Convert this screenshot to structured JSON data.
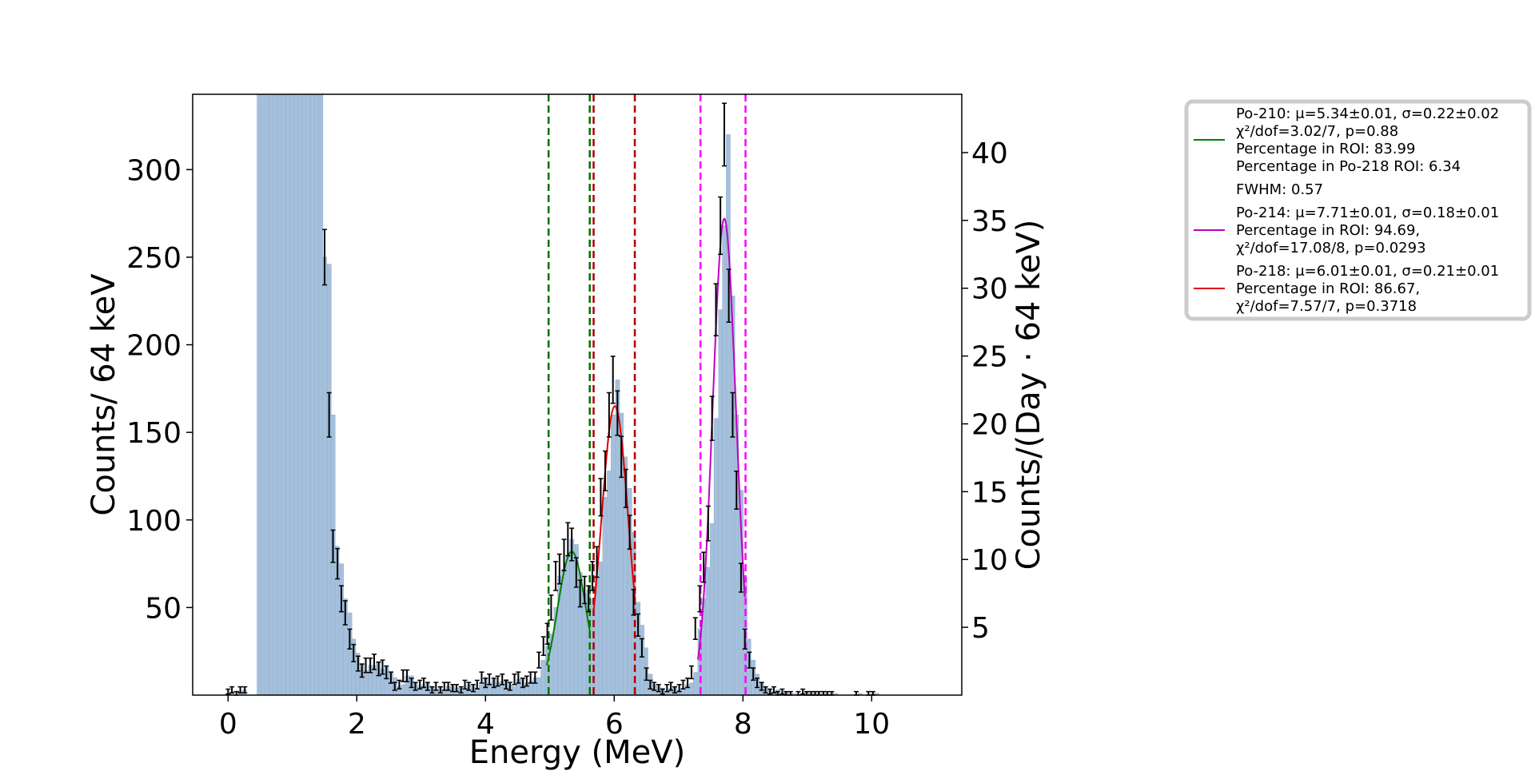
{
  "chart_data": {
    "type": "bar",
    "xlabel": "Energy (MeV)",
    "ylabel": "Counts/ 64 keV",
    "ylabel_right": "Counts/(Day · 64 keV)",
    "xlim": [
      -0.55,
      11.4
    ],
    "ylim": [
      0,
      343
    ],
    "ylim_right": [
      0,
      44.3
    ],
    "xticks": [
      0,
      2,
      4,
      6,
      8,
      10
    ],
    "xtick_labels": [
      "0",
      "2",
      "4",
      "6",
      "8",
      "10"
    ],
    "yticks": [
      50,
      100,
      150,
      200,
      250,
      300
    ],
    "ytick_labels": [
      "50",
      "100",
      "150",
      "200",
      "250",
      "300"
    ],
    "yticks_right": [
      5,
      10,
      15,
      20,
      25,
      30,
      35,
      40
    ],
    "ytick_right_labels": [
      "5",
      "10",
      "15",
      "20",
      "25",
      "30",
      "35",
      "40"
    ],
    "bin_width": 0.064,
    "histogram": {
      "color": "#a4c0dc",
      "x_start": 0,
      "values": [
        0,
        1,
        2,
        0,
        1,
        2,
        2,
        1,
        0,
        0,
        0,
        0,
        0,
        0,
        0,
        0,
        0,
        0,
        0,
        0,
        0,
        0,
        0,
        0,
        0,
        0,
        0,
        0,
        0,
        0,
        0,
        0,
        0,
        0,
        0,
        0,
        0,
        0,
        0,
        0,
        0,
        0,
        0,
        0,
        0,
        0,
        0,
        0,
        0,
        0,
        0,
        0,
        0,
        0,
        0,
        0,
        0,
        0,
        0,
        0,
        0,
        0,
        0,
        0,
        0,
        0,
        0,
        0,
        0,
        0,
        0,
        0,
        0,
        0,
        0,
        0,
        0,
        0,
        0,
        0,
        0,
        0,
        0,
        0,
        0,
        0,
        0,
        0,
        0,
        0,
        0,
        0,
        0,
        0,
        0,
        0,
        0,
        0,
        0,
        0,
        0,
        0,
        0,
        0,
        0,
        0,
        0,
        0,
        0,
        0,
        0,
        0,
        0,
        0,
        0,
        0,
        0,
        0,
        0,
        0,
        0,
        0,
        0,
        0,
        0,
        0,
        0,
        0,
        0,
        0,
        0,
        0,
        0,
        0,
        0,
        0,
        0,
        0,
        0,
        0,
        0,
        0,
        0,
        0,
        0,
        0,
        0,
        0,
        0,
        0,
        0,
        0,
        0,
        0,
        0,
        0,
        0,
        0,
        0,
        0,
        0,
        0,
        0,
        0,
        0,
        0,
        0,
        0,
        0,
        0,
        0,
        0,
        0,
        0,
        0,
        0,
        0,
        0,
        0,
        0,
        0,
        0,
        0,
        0,
        0,
        0,
        0,
        0,
        0,
        0
      ],
      "bins": [
        [
          -0.03,
          1
        ],
        [
          0.03,
          2
        ],
        [
          0.1,
          0
        ],
        [
          0.16,
          2
        ],
        [
          0.22,
          3
        ],
        [
          0.45,
          343
        ],
        [
          0.51,
          343
        ],
        [
          0.58,
          343
        ],
        [
          0.64,
          343
        ],
        [
          0.7,
          343
        ],
        [
          0.77,
          343
        ],
        [
          0.83,
          343
        ],
        [
          0.9,
          343
        ],
        [
          0.96,
          343
        ],
        [
          1.02,
          343
        ],
        [
          1.09,
          343
        ],
        [
          1.15,
          343
        ],
        [
          1.22,
          343
        ],
        [
          1.28,
          343
        ],
        [
          1.34,
          343
        ],
        [
          1.41,
          343
        ],
        [
          1.47,
          250
        ],
        [
          1.54,
          246
        ],
        [
          1.6,
          160
        ],
        [
          1.66,
          85
        ],
        [
          1.73,
          75
        ],
        [
          1.79,
          55
        ],
        [
          1.86,
          47
        ],
        [
          1.92,
          32
        ],
        [
          1.98,
          24
        ],
        [
          2.05,
          18
        ],
        [
          2.11,
          14
        ],
        [
          2.18,
          17
        ],
        [
          2.24,
          17
        ],
        [
          2.3,
          19
        ],
        [
          2.37,
          15
        ],
        [
          2.43,
          16
        ],
        [
          2.5,
          13
        ],
        [
          2.56,
          10
        ],
        [
          2.62,
          5
        ],
        [
          2.69,
          6
        ],
        [
          2.75,
          11
        ],
        [
          2.82,
          11
        ],
        [
          2.88,
          7
        ],
        [
          2.94,
          5
        ],
        [
          3.01,
          6
        ],
        [
          3.07,
          7
        ],
        [
          3.14,
          5
        ],
        [
          3.2,
          3
        ],
        [
          3.26,
          5
        ],
        [
          3.33,
          3
        ],
        [
          3.39,
          5
        ],
        [
          3.46,
          5
        ],
        [
          3.52,
          4
        ],
        [
          3.58,
          4
        ],
        [
          3.65,
          3
        ],
        [
          3.71,
          6
        ],
        [
          3.78,
          5
        ],
        [
          3.84,
          4
        ],
        [
          3.9,
          6
        ],
        [
          3.97,
          10
        ],
        [
          4.03,
          7
        ],
        [
          4.1,
          9
        ],
        [
          4.16,
          7
        ],
        [
          4.22,
          8
        ],
        [
          4.29,
          9
        ],
        [
          4.35,
          6
        ],
        [
          4.42,
          5
        ],
        [
          4.48,
          9
        ],
        [
          4.54,
          10
        ],
        [
          4.61,
          7
        ],
        [
          4.67,
          8
        ],
        [
          4.74,
          10
        ],
        [
          4.8,
          10
        ],
        [
          4.86,
          20
        ],
        [
          4.93,
          28
        ],
        [
          4.99,
          35
        ],
        [
          5.06,
          50
        ],
        [
          5.12,
          68
        ],
        [
          5.18,
          72
        ],
        [
          5.25,
          80
        ],
        [
          5.31,
          89
        ],
        [
          5.38,
          86
        ],
        [
          5.44,
          70
        ],
        [
          5.5,
          58
        ],
        [
          5.57,
          60
        ],
        [
          5.63,
          55
        ],
        [
          5.7,
          68
        ],
        [
          5.76,
          76
        ],
        [
          5.82,
          113
        ],
        [
          5.89,
          128
        ],
        [
          5.95,
          160
        ],
        [
          6.02,
          180
        ],
        [
          6.08,
          161
        ],
        [
          6.14,
          136
        ],
        [
          6.21,
          118
        ],
        [
          6.27,
          93
        ],
        [
          6.34,
          53
        ],
        [
          6.4,
          40
        ],
        [
          6.46,
          27
        ],
        [
          6.53,
          12
        ],
        [
          6.59,
          6
        ],
        [
          6.66,
          5
        ],
        [
          6.72,
          4
        ],
        [
          6.78,
          2
        ],
        [
          6.85,
          4
        ],
        [
          6.91,
          5
        ],
        [
          6.98,
          3
        ],
        [
          7.04,
          4
        ],
        [
          7.1,
          6
        ],
        [
          7.17,
          7
        ],
        [
          7.23,
          13
        ],
        [
          7.3,
          38
        ],
        [
          7.36,
          55
        ],
        [
          7.42,
          73
        ],
        [
          7.49,
          98
        ],
        [
          7.55,
          158
        ],
        [
          7.62,
          220
        ],
        [
          7.68,
          268
        ],
        [
          7.74,
          320
        ],
        [
          7.81,
          228
        ],
        [
          7.87,
          160
        ],
        [
          7.94,
          117
        ],
        [
          8.0,
          67
        ],
        [
          8.06,
          32
        ],
        [
          8.13,
          20
        ],
        [
          8.19,
          12
        ],
        [
          8.26,
          7
        ],
        [
          8.32,
          5
        ],
        [
          8.38,
          3
        ],
        [
          8.45,
          2
        ],
        [
          8.51,
          3
        ],
        [
          8.58,
          1
        ],
        [
          8.64,
          2
        ],
        [
          8.7,
          1
        ],
        [
          8.77,
          1
        ],
        [
          8.83,
          0
        ],
        [
          8.9,
          1
        ],
        [
          8.96,
          2
        ],
        [
          9.02,
          1
        ],
        [
          9.09,
          1
        ],
        [
          9.15,
          1
        ],
        [
          9.22,
          1
        ],
        [
          9.28,
          1
        ],
        [
          9.34,
          1
        ],
        [
          9.41,
          1
        ],
        [
          9.47,
          0
        ],
        [
          9.54,
          0
        ],
        [
          9.6,
          0
        ],
        [
          9.66,
          0
        ],
        [
          9.73,
          0
        ],
        [
          9.79,
          1
        ],
        [
          9.86,
          0
        ],
        [
          9.92,
          0
        ],
        [
          9.98,
          1
        ],
        [
          10.05,
          1
        ],
        [
          10.11,
          0
        ],
        [
          10.18,
          0
        ],
        [
          10.24,
          0
        ],
        [
          10.3,
          0
        ],
        [
          10.37,
          0
        ],
        [
          10.43,
          0
        ],
        [
          10.5,
          0
        ],
        [
          10.56,
          0
        ],
        [
          10.62,
          0
        ],
        [
          10.69,
          0
        ],
        [
          10.75,
          0
        ]
      ]
    },
    "error_points": [
      [
        0.0,
        2
      ],
      [
        0.06,
        3
      ],
      [
        0.13,
        1
      ],
      [
        0.19,
        3
      ],
      [
        0.26,
        3
      ],
      [
        1.5,
        250
      ],
      [
        1.57,
        160
      ],
      [
        1.63,
        85
      ],
      [
        1.7,
        75
      ],
      [
        1.76,
        55
      ],
      [
        1.82,
        47
      ],
      [
        1.89,
        32
      ],
      [
        1.95,
        24
      ],
      [
        2.02,
        18
      ],
      [
        2.08,
        14
      ],
      [
        2.14,
        17
      ],
      [
        2.21,
        17
      ],
      [
        2.27,
        19
      ],
      [
        2.34,
        15
      ],
      [
        2.4,
        16
      ],
      [
        2.46,
        13
      ],
      [
        2.53,
        10
      ],
      [
        2.59,
        5
      ],
      [
        2.66,
        6
      ],
      [
        2.72,
        11
      ],
      [
        2.78,
        11
      ],
      [
        2.85,
        7
      ],
      [
        2.91,
        5
      ],
      [
        2.98,
        6
      ],
      [
        3.04,
        7
      ],
      [
        3.1,
        5
      ],
      [
        3.17,
        3
      ],
      [
        3.23,
        5
      ],
      [
        3.3,
        3
      ],
      [
        3.36,
        5
      ],
      [
        3.42,
        5
      ],
      [
        3.49,
        4
      ],
      [
        3.55,
        4
      ],
      [
        3.62,
        3
      ],
      [
        3.68,
        6
      ],
      [
        3.74,
        5
      ],
      [
        3.81,
        4
      ],
      [
        3.87,
        6
      ],
      [
        3.94,
        10
      ],
      [
        4.0,
        7
      ],
      [
        4.06,
        9
      ],
      [
        4.13,
        7
      ],
      [
        4.19,
        8
      ],
      [
        4.26,
        9
      ],
      [
        4.32,
        6
      ],
      [
        4.38,
        5
      ],
      [
        4.45,
        9
      ],
      [
        4.51,
        10
      ],
      [
        4.58,
        7
      ],
      [
        4.64,
        8
      ],
      [
        4.7,
        10
      ],
      [
        4.77,
        10
      ],
      [
        4.83,
        20
      ],
      [
        4.9,
        28
      ],
      [
        4.96,
        35
      ],
      [
        5.02,
        50
      ],
      [
        5.09,
        68
      ],
      [
        5.15,
        72
      ],
      [
        5.22,
        80
      ],
      [
        5.28,
        89
      ],
      [
        5.34,
        86
      ],
      [
        5.41,
        70
      ],
      [
        5.47,
        58
      ],
      [
        5.54,
        60
      ],
      [
        5.6,
        55
      ],
      [
        5.66,
        68
      ],
      [
        5.73,
        76
      ],
      [
        5.79,
        113
      ],
      [
        5.86,
        128
      ],
      [
        5.92,
        160
      ],
      [
        5.98,
        180
      ],
      [
        6.05,
        161
      ],
      [
        6.11,
        136
      ],
      [
        6.18,
        118
      ],
      [
        6.24,
        93
      ],
      [
        6.3,
        53
      ],
      [
        6.37,
        40
      ],
      [
        6.43,
        27
      ],
      [
        6.5,
        12
      ],
      [
        6.56,
        6
      ],
      [
        6.62,
        5
      ],
      [
        6.69,
        4
      ],
      [
        6.75,
        2
      ],
      [
        6.82,
        4
      ],
      [
        6.88,
        5
      ],
      [
        6.94,
        3
      ],
      [
        7.01,
        4
      ],
      [
        7.07,
        6
      ],
      [
        7.14,
        7
      ],
      [
        7.2,
        13
      ],
      [
        7.26,
        38
      ],
      [
        7.33,
        55
      ],
      [
        7.39,
        73
      ],
      [
        7.46,
        98
      ],
      [
        7.52,
        158
      ],
      [
        7.58,
        220
      ],
      [
        7.65,
        268
      ],
      [
        7.71,
        320
      ],
      [
        7.78,
        228
      ],
      [
        7.84,
        160
      ],
      [
        7.9,
        117
      ],
      [
        7.97,
        67
      ],
      [
        8.03,
        32
      ],
      [
        8.1,
        20
      ],
      [
        8.16,
        12
      ],
      [
        8.22,
        7
      ],
      [
        8.29,
        5
      ],
      [
        8.35,
        3
      ],
      [
        8.42,
        2
      ],
      [
        8.48,
        3
      ],
      [
        8.54,
        1
      ],
      [
        8.61,
        2
      ],
      [
        8.67,
        1
      ],
      [
        8.74,
        1
      ],
      [
        8.86,
        1
      ],
      [
        8.93,
        2
      ],
      [
        8.99,
        1
      ],
      [
        9.06,
        1
      ],
      [
        9.12,
        1
      ],
      [
        9.18,
        1
      ],
      [
        9.25,
        1
      ],
      [
        9.31,
        1
      ],
      [
        9.38,
        1
      ],
      [
        9.76,
        1
      ],
      [
        9.95,
        1
      ],
      [
        10.02,
        1
      ]
    ],
    "fits": [
      {
        "name": "Po-210",
        "color": "#008000",
        "mu": 5.34,
        "sigma": 0.22,
        "amp": 82,
        "range": [
          4.95,
          5.62
        ]
      },
      {
        "name": "Po-214",
        "color": "#c000c0",
        "mu": 7.71,
        "sigma": 0.18,
        "amp": 272,
        "range": [
          7.3,
          8.03
        ]
      },
      {
        "name": "Po-218",
        "color": "#e00000",
        "mu": 6.01,
        "sigma": 0.21,
        "amp": 165,
        "range": [
          5.68,
          6.32
        ]
      }
    ],
    "roi_lines": [
      {
        "x": 4.98,
        "color": "#007000"
      },
      {
        "x": 5.62,
        "color": "#007000"
      },
      {
        "x": 5.68,
        "color": "#b00000"
      },
      {
        "x": 6.32,
        "color": "#b00000"
      },
      {
        "x": 7.34,
        "color": "#ff00ff"
      },
      {
        "x": 8.04,
        "color": "#ff00ff"
      }
    ],
    "legend": {
      "position": "upper right, outside plot",
      "entries": [
        {
          "color": "#008000",
          "lines": [
            "Po-210: μ=5.34±0.01, σ=0.22±0.02",
            "χ²/dof=3.02/7, p=0.88",
            "Percentage in ROI: 83.99",
            "Percentage in Po-218 ROI: 6.34"
          ]
        },
        {
          "color": "",
          "lines": [
            "FWHM: 0.57"
          ]
        },
        {
          "color": "#c000c0",
          "lines": [
            "Po-214: μ=7.71±0.01, σ=0.18±0.01",
            "Percentage in ROI: 94.69,",
            "χ²/dof=17.08/8, p=0.0293"
          ]
        },
        {
          "color": "#e00000",
          "lines": [
            "Po-218: μ=6.01±0.01, σ=0.21±0.01",
            "Percentage in ROI: 86.67,",
            "χ²/dof=7.57/7, p=0.3718"
          ]
        }
      ]
    }
  }
}
